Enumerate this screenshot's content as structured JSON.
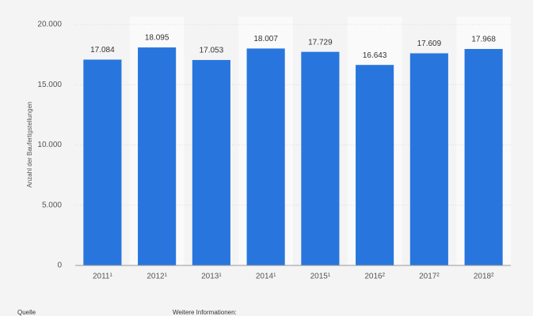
{
  "chart_data": {
    "type": "bar",
    "y_axis_label": "Anzahl der Baufertigstellungen",
    "categories": [
      "2011¹",
      "2012¹",
      "2013¹",
      "2014¹",
      "2015¹",
      "2016²",
      "2017²",
      "2018²"
    ],
    "values": [
      17084,
      18095,
      17053,
      18007,
      17729,
      16643,
      17609,
      17968
    ],
    "value_labels": [
      "17.084",
      "18.095",
      "17.053",
      "18.007",
      "17.729",
      "16.643",
      "17.609",
      "17.968"
    ],
    "color": "#2876dd",
    "ylim": [
      0,
      20000
    ],
    "yticks": [
      {
        "value": 0,
        "label": "0"
      },
      {
        "value": 5000,
        "label": "5.000"
      },
      {
        "value": 10000,
        "label": "10.000"
      },
      {
        "value": 15000,
        "label": "15.000"
      },
      {
        "value": 20000,
        "label": "20.000"
      }
    ],
    "grid": true
  },
  "footer": {
    "source": "Quelle",
    "more_info": "Weitere Informationen:"
  }
}
